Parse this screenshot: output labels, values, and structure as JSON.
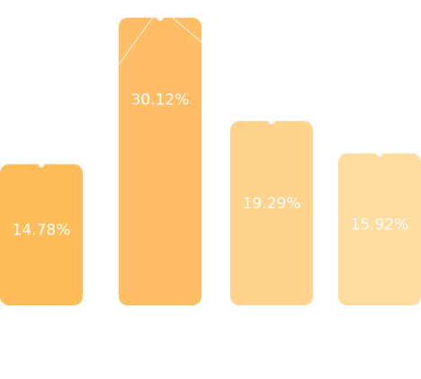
{
  "chart_data": {
    "type": "bar",
    "categories": [
      "",
      "",
      "",
      ""
    ],
    "values": [
      14.78,
      30.12,
      19.29,
      15.92
    ],
    "value_labels": [
      "14.78%",
      "30.12%",
      "19.29%",
      "15.92%"
    ],
    "colors": [
      "#ffbd59",
      "#ffbd66",
      "#ffd28d",
      "#ffdc9f"
    ],
    "title": "",
    "xlabel": "",
    "ylabel": "",
    "ylim": [
      0,
      31.5
    ],
    "grid": false,
    "legend": "none"
  }
}
